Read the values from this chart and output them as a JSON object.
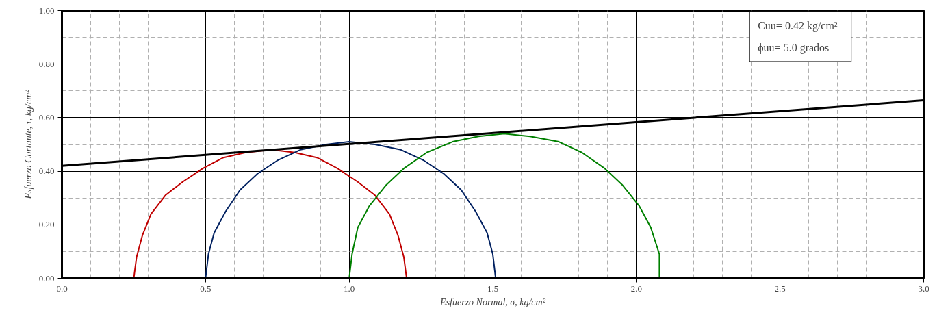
{
  "chart_data": {
    "type": "line",
    "xlabel": "Esfuerzo Normal, σ, kg/cm²",
    "ylabel": "Esfuerzo Cortante, τ, kg/cm²",
    "annotations": [
      "Cuu=  0.42  kg/cm²",
      "ϕuu=  5.0  grados"
    ],
    "xlim": [
      0,
      3
    ],
    "ylim": [
      0,
      1
    ],
    "xticks": [
      {
        "value": 0,
        "label": "0.0"
      },
      {
        "value": 0.5,
        "label": "0.5"
      },
      {
        "value": 1,
        "label": "1.0"
      },
      {
        "value": 1.5,
        "label": "1.5"
      },
      {
        "value": 2,
        "label": "2.0"
      },
      {
        "value": 2.5,
        "label": "2.5"
      },
      {
        "value": 3,
        "label": "3.0"
      }
    ],
    "yticks": [
      {
        "value": 0,
        "label": "0.00"
      },
      {
        "value": 0.2,
        "label": "0.20"
      },
      {
        "value": 0.4,
        "label": "0.40"
      },
      {
        "value": 0.6,
        "label": "0.60"
      },
      {
        "value": 0.8,
        "label": "0.80"
      },
      {
        "value": 1,
        "label": "1.00"
      }
    ],
    "grid": true,
    "series": [
      {
        "color": "#c00000",
        "x": [
          0.25,
          0.26,
          0.28,
          0.31,
          0.36,
          0.42,
          0.49,
          0.56,
          0.64,
          0.73,
          0.81,
          0.89,
          0.96,
          1.03,
          1.09,
          1.14,
          1.17,
          1.19,
          1.2
        ],
        "values": [
          0,
          0.08,
          0.16,
          0.24,
          0.31,
          0.36,
          0.41,
          0.45,
          0.47,
          0.48,
          0.47,
          0.45,
          0.41,
          0.36,
          0.31,
          0.24,
          0.16,
          0.08,
          0
        ]
      },
      {
        "color": "#002060",
        "x": [
          0.5,
          0.51,
          0.53,
          0.57,
          0.62,
          0.68,
          0.75,
          0.83,
          0.92,
          1.0,
          1.09,
          1.18,
          1.26,
          1.33,
          1.39,
          1.44,
          1.48,
          1.5,
          1.51
        ],
        "values": [
          0,
          0.09,
          0.17,
          0.25,
          0.33,
          0.39,
          0.44,
          0.48,
          0.5,
          0.51,
          0.5,
          0.48,
          0.44,
          0.39,
          0.33,
          0.25,
          0.17,
          0.09,
          0
        ]
      },
      {
        "color": "#008000",
        "x": [
          1.0,
          1.01,
          1.03,
          1.07,
          1.13,
          1.19,
          1.27,
          1.36,
          1.45,
          1.54,
          1.63,
          1.73,
          1.81,
          1.89,
          1.95,
          2.01,
          2.05,
          2.08,
          2.08
        ],
        "values": [
          0,
          0.09,
          0.19,
          0.27,
          0.35,
          0.41,
          0.47,
          0.51,
          0.53,
          0.54,
          0.53,
          0.51,
          0.47,
          0.41,
          0.35,
          0.27,
          0.19,
          0.09,
          0
        ]
      },
      {
        "color": "#000000",
        "x": [
          0,
          3
        ],
        "values": [
          0.42,
          0.665
        ]
      }
    ]
  }
}
